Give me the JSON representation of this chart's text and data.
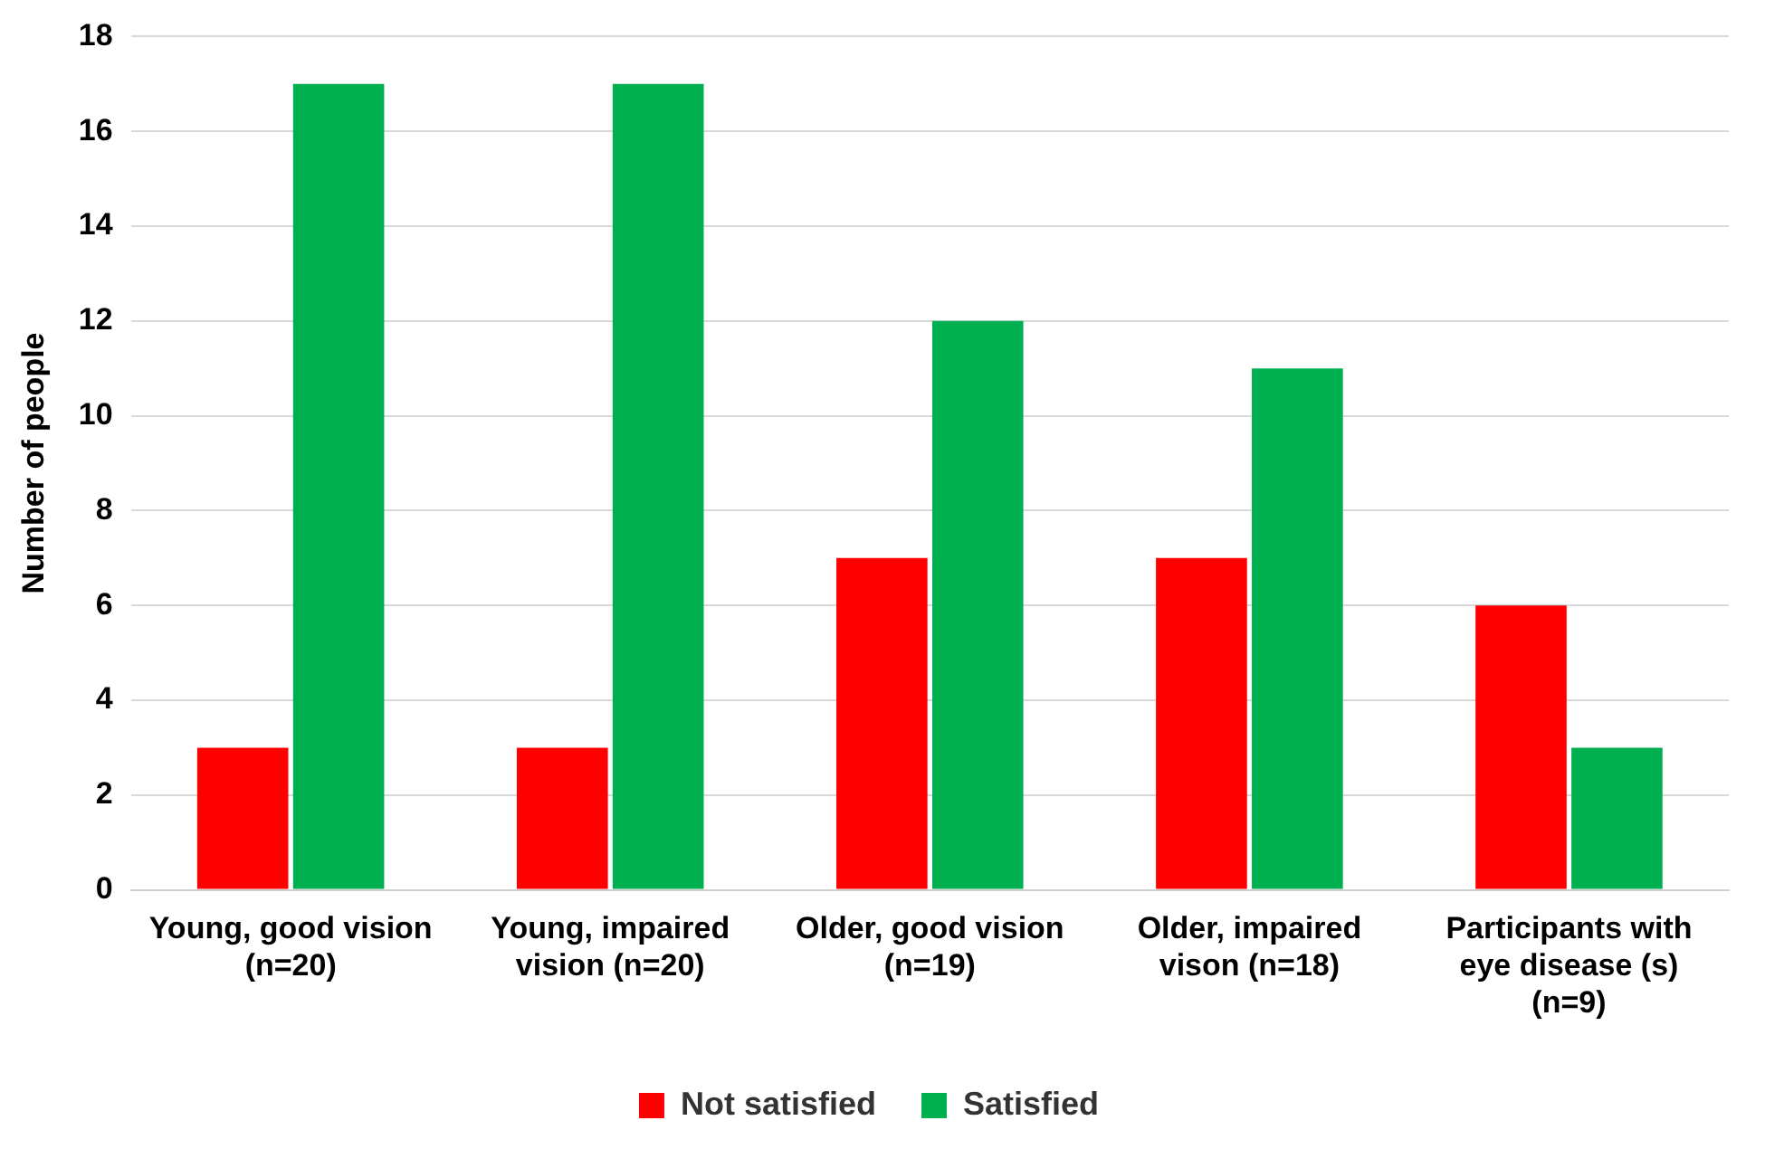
{
  "chart_data": {
    "type": "bar",
    "ylabel": "Number of people",
    "categories": [
      "Young, good vision (n=20)",
      "Young, impaired vision (n=20)",
      "Older, good vision (n=19)",
      "Older, impaired vison (n=18)",
      "Participants with eye disease (s) (n=9)"
    ],
    "series": [
      {
        "name": "Not satisfied",
        "color": "#ff0000",
        "values": [
          3,
          3,
          7,
          7,
          6
        ]
      },
      {
        "name": "Satisfied",
        "color": "#00b050",
        "values": [
          17,
          17,
          12,
          11,
          3
        ]
      }
    ],
    "ylim": [
      0,
      18
    ],
    "yticks": [
      0,
      2,
      4,
      6,
      8,
      10,
      12,
      14,
      16,
      18
    ],
    "grid": "y",
    "legend": "bottom"
  }
}
